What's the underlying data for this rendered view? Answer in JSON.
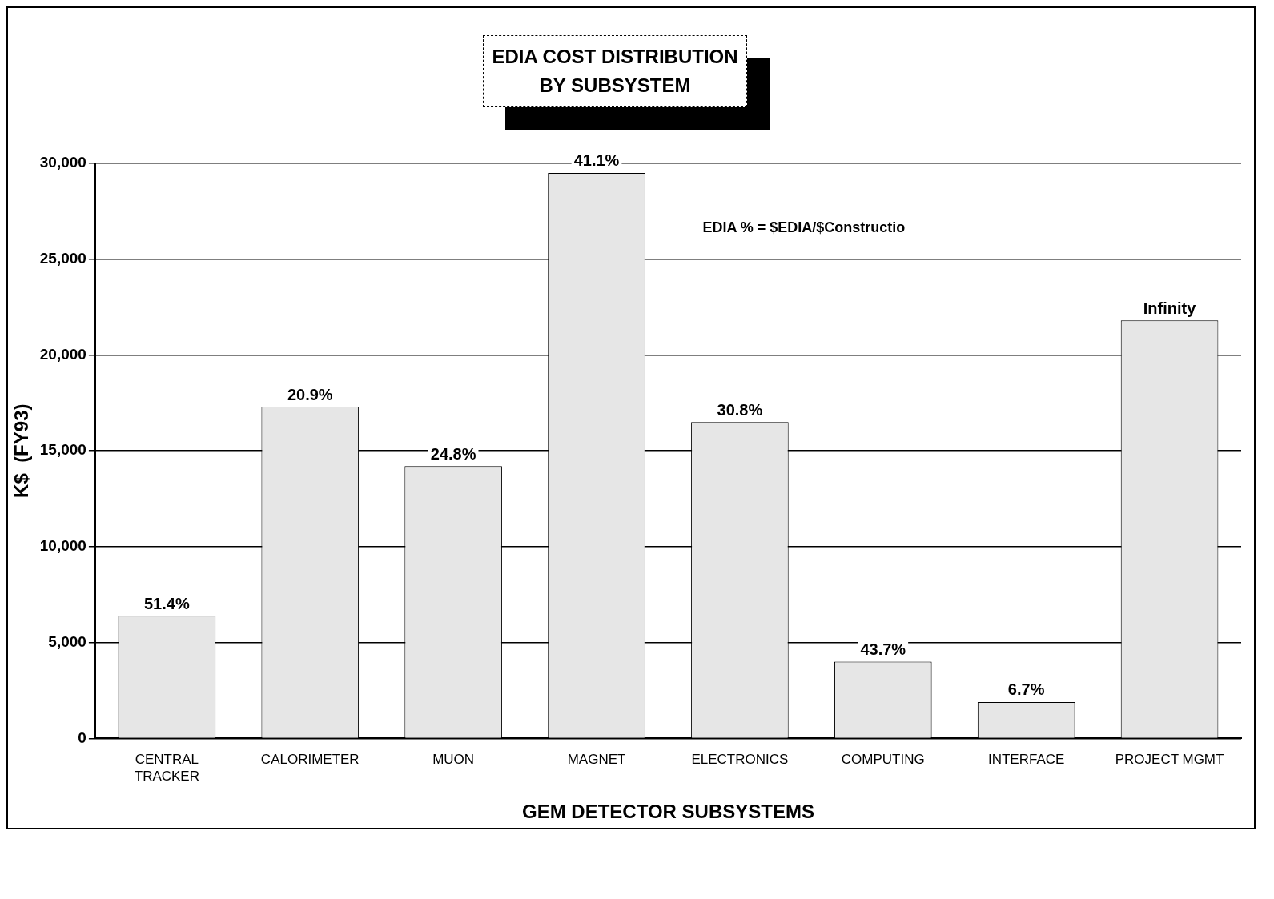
{
  "chart_data": {
    "type": "bar",
    "title": "EDIA COST DISTRIBUTION\nBY SUBSYSTEM",
    "xlabel": "GEM DETECTOR SUBSYSTEMS",
    "ylabel": "K$  (FY93)",
    "categories": [
      "CENTRAL TRACKER",
      "CALORIMETER",
      "MUON",
      "MAGNET",
      "ELECTRONICS",
      "COMPUTING",
      "INTERFACE",
      "PROJECT MGMT"
    ],
    "values": [
      6400,
      17300,
      14200,
      29500,
      16500,
      4000,
      1900,
      21800
    ],
    "color": "#e6e6e6",
    "ylim": [
      0,
      30000
    ],
    "yticks": [
      0,
      {
        "value": 5000,
        "label": "5,000"
      },
      {
        "value": 10000,
        "label": "10,000"
      },
      {
        "value": 15000,
        "label": "15,000"
      },
      {
        "value": 20000,
        "label": "20,000"
      },
      {
        "value": 25000,
        "label": "25,000"
      },
      {
        "value": 30000,
        "label": "30,000"
      }
    ],
    "grid": "y",
    "annotations": [
      "EDIA % = $EDIA/$Constructio",
      {
        "text": "51.4%",
        "x": "CENTRAL TRACKER",
        "y": 6400
      },
      {
        "text": "20.9%",
        "x": "CALORIMETER",
        "y": 17300
      },
      {
        "text": "24.8%",
        "x": "MUON",
        "y": 14200
      },
      {
        "text": "41.1%",
        "x": "MAGNET",
        "y": 29500
      },
      {
        "text": "30.8%",
        "x": "ELECTRONICS",
        "y": 16500
      },
      {
        "text": "43.7%",
        "x": "COMPUTING",
        "y": 4000
      },
      {
        "text": "6.7%",
        "x": "INTERFACE",
        "y": 1900
      },
      {
        "text": "Infinity",
        "x": "PROJECT MGMT",
        "y": 21800
      }
    ]
  }
}
